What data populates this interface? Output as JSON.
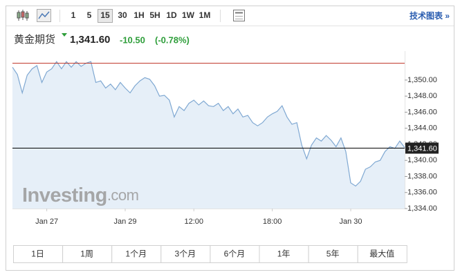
{
  "toolbar": {
    "intervals": [
      "1",
      "5",
      "15",
      "30",
      "1H",
      "5H",
      "1D",
      "1W",
      "1M"
    ],
    "active_interval": "15",
    "link": "技术图表 »"
  },
  "header": {
    "name": "黄金期货",
    "price": "1,341.60",
    "change": "-10.50",
    "change_percent": "(-0.78%)"
  },
  "chart_data": {
    "type": "area",
    "series": [
      {
        "color": "#7fa8d2",
        "fill": "#e6eff8",
        "values": [
          1351.6,
          1350.7,
          1348.4,
          1350.6,
          1351.4,
          1351.8,
          1349.7,
          1351.0,
          1351.4,
          1352.3,
          1351.4,
          1352.3,
          1351.6,
          1352.3,
          1351.7,
          1352.1,
          1352.3,
          1349.7,
          1349.9,
          1349.0,
          1349.5,
          1348.8,
          1349.7,
          1349.0,
          1348.4,
          1349.3,
          1349.9,
          1350.3,
          1350.1,
          1349.3,
          1348.0,
          1348.1,
          1347.5,
          1345.4,
          1346.7,
          1346.2,
          1347.1,
          1347.5,
          1346.9,
          1347.4,
          1346.8,
          1346.7,
          1347.1,
          1346.2,
          1346.7,
          1345.8,
          1346.4,
          1345.4,
          1345.6,
          1344.7,
          1344.3,
          1344.7,
          1345.4,
          1345.8,
          1346.1,
          1346.8,
          1345.4,
          1344.5,
          1344.7,
          1341.9,
          1340.2,
          1341.9,
          1342.8,
          1342.4,
          1343.1,
          1342.5,
          1341.7,
          1342.8,
          1341.1,
          1337.2,
          1336.8,
          1337.4,
          1338.9,
          1339.2,
          1339.8,
          1340.0,
          1341.1,
          1341.7,
          1341.5,
          1342.4,
          1341.6
        ]
      }
    ],
    "xlim": [
      0,
      80
    ],
    "xticks": [
      {
        "value": 7,
        "label": "Jan 27"
      },
      {
        "value": 23,
        "label": "Jan 29"
      },
      {
        "value": 37,
        "label": "12:00"
      },
      {
        "value": 53,
        "label": "18:00"
      },
      {
        "value": 69,
        "label": "Jan 30"
      }
    ],
    "ylim": [
      1334,
      1352.4
    ],
    "yticks": [
      {
        "value": 1334,
        "label": "1,334.00"
      },
      {
        "value": 1336,
        "label": "1,336.00"
      },
      {
        "value": 1338,
        "label": "1,338.00"
      },
      {
        "value": 1340,
        "label": "1,340.00"
      },
      {
        "value": 1342,
        "label": "1,342.00"
      },
      {
        "value": 1344,
        "label": "1,344.00"
      },
      {
        "value": 1346,
        "label": "1,346.00"
      },
      {
        "value": 1348,
        "label": "1,348.00"
      },
      {
        "value": 1350,
        "label": "1,350.00"
      }
    ],
    "reference_lines": [
      {
        "value": 1352.1,
        "color": "#c0392b"
      },
      {
        "value": 1341.6,
        "label": "1,341.60",
        "color": "#000000"
      }
    ],
    "watermark": [
      "Investing",
      ".com"
    ]
  },
  "range_buttons": [
    "1日",
    "1周",
    "1个月",
    "3个月",
    "6个月",
    "1年",
    "5年",
    "最大值"
  ]
}
